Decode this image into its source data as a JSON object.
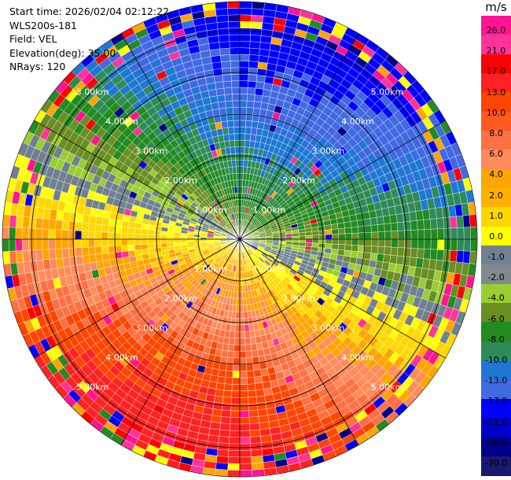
{
  "header": {
    "start_time": "Start time: 2026/02/04 02:12:22",
    "instrument": "WLS200s-181",
    "field": "Field: VEL",
    "elevation": "Elevation(deg): 35.00",
    "nrays": "NRays: 120"
  },
  "chart_data": {
    "type": "heatmap",
    "projection": "polar PPI",
    "field": "VEL",
    "units": "m/s",
    "nrays": 120,
    "range_rings_km": [
      1,
      2,
      3,
      4,
      5
    ],
    "range_labels": [
      "1.00km",
      "2.00km",
      "3.00km",
      "4.00km",
      "5.00km"
    ],
    "max_range_km": 5.7,
    "colorbar": {
      "title": "m/s",
      "ticks": [
        "26.0",
        "21.0",
        "17.0",
        "13.0",
        "10.0",
        "8.0",
        "6.0",
        "4.0",
        "2.0",
        "1.0",
        "0.0",
        "-1.0",
        "-2.0",
        "-4.0",
        "-6.0",
        "-8.0",
        "-10.0",
        "-13.0",
        "-17.0",
        "-21.0",
        "-26.0",
        "-30.0"
      ],
      "colors": [
        "#ff1493",
        "#ff3399",
        "#ff0000",
        "#ff2222",
        "#ff4500",
        "#ff5a1f",
        "#ff7043",
        "#ff8c5a",
        "#ffa500",
        "#ffb000",
        "#ffd700",
        "#ffff00",
        "#708090",
        "#808890",
        "#9acd32",
        "#6b8e23",
        "#228b22",
        "#2e8b57",
        "#1e78d2",
        "#4169e1",
        "#0000ff",
        "#0000cd",
        "#00008b",
        "#191970"
      ]
    },
    "velocity_model": {
      "description": "radial velocity negative (toward) to north/north-west, positive (away) to south/south-east",
      "max_speed_ms": 18
    }
  }
}
